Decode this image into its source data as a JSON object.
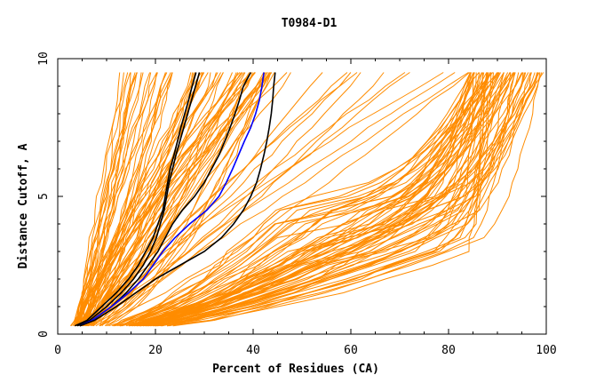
{
  "chart_data": {
    "type": "line",
    "title": "T0984-D1",
    "xlabel": "Percent of Residues (CA)",
    "ylabel": "Distance Cutoff, A",
    "xlim": [
      0,
      100
    ],
    "ylim": [
      0,
      10
    ],
    "x_ticks": [
      0,
      20,
      40,
      60,
      80,
      100
    ],
    "y_ticks": [
      0,
      5,
      10
    ],
    "grid": false,
    "colors": {
      "background_series": "#ff8c00",
      "highlight_black": "#000000",
      "highlight_blue": "#0000ff"
    },
    "cutoffs": [
      0.3,
      0.5,
      1,
      1.5,
      2,
      2.5,
      3,
      3.5,
      4,
      4.5,
      5,
      5.5,
      6,
      6.5,
      7,
      7.5,
      8,
      8.5,
      9,
      9.5
    ],
    "background_count": 150,
    "highlighted_series": [
      {
        "name": "black-1",
        "color": "#000000",
        "x": [
          3.5,
          6,
          9,
          12,
          14.5,
          16.5,
          18,
          19.5,
          20.5,
          21.5,
          22,
          22.5,
          23,
          23.8,
          24.5,
          25.2,
          26,
          26.8,
          27.5,
          28.3
        ]
      },
      {
        "name": "black-2",
        "color": "#000000",
        "x": [
          4,
          6.5,
          10,
          13,
          15.5,
          17.5,
          19,
          20.2,
          21,
          21.8,
          22.3,
          22.8,
          23.5,
          24.2,
          25,
          25.8,
          26.6,
          27.4,
          28.2,
          29
        ]
      },
      {
        "name": "black-3",
        "color": "#000000",
        "x": [
          4.5,
          7,
          11,
          14,
          16.5,
          18.5,
          20.5,
          22,
          23.5,
          25.5,
          28,
          30,
          31.5,
          33,
          34.2,
          35.3,
          36.3,
          37.2,
          38,
          39.5
        ]
      },
      {
        "name": "blue",
        "color": "#0000ff",
        "x": [
          4.5,
          7,
          11,
          14.5,
          17.5,
          19.5,
          21.5,
          24,
          27,
          30.5,
          33,
          34.5,
          35.8,
          37,
          38.2,
          39.5,
          40.5,
          41.3,
          41.8,
          42.2
        ]
      },
      {
        "name": "black-4",
        "color": "#000000",
        "x": [
          4.5,
          7.5,
          12,
          16,
          20,
          25,
          30,
          33.5,
          36,
          38,
          39.5,
          40.7,
          41.5,
          42.2,
          42.8,
          43.3,
          43.7,
          44,
          44.2,
          44.5
        ]
      }
    ]
  }
}
